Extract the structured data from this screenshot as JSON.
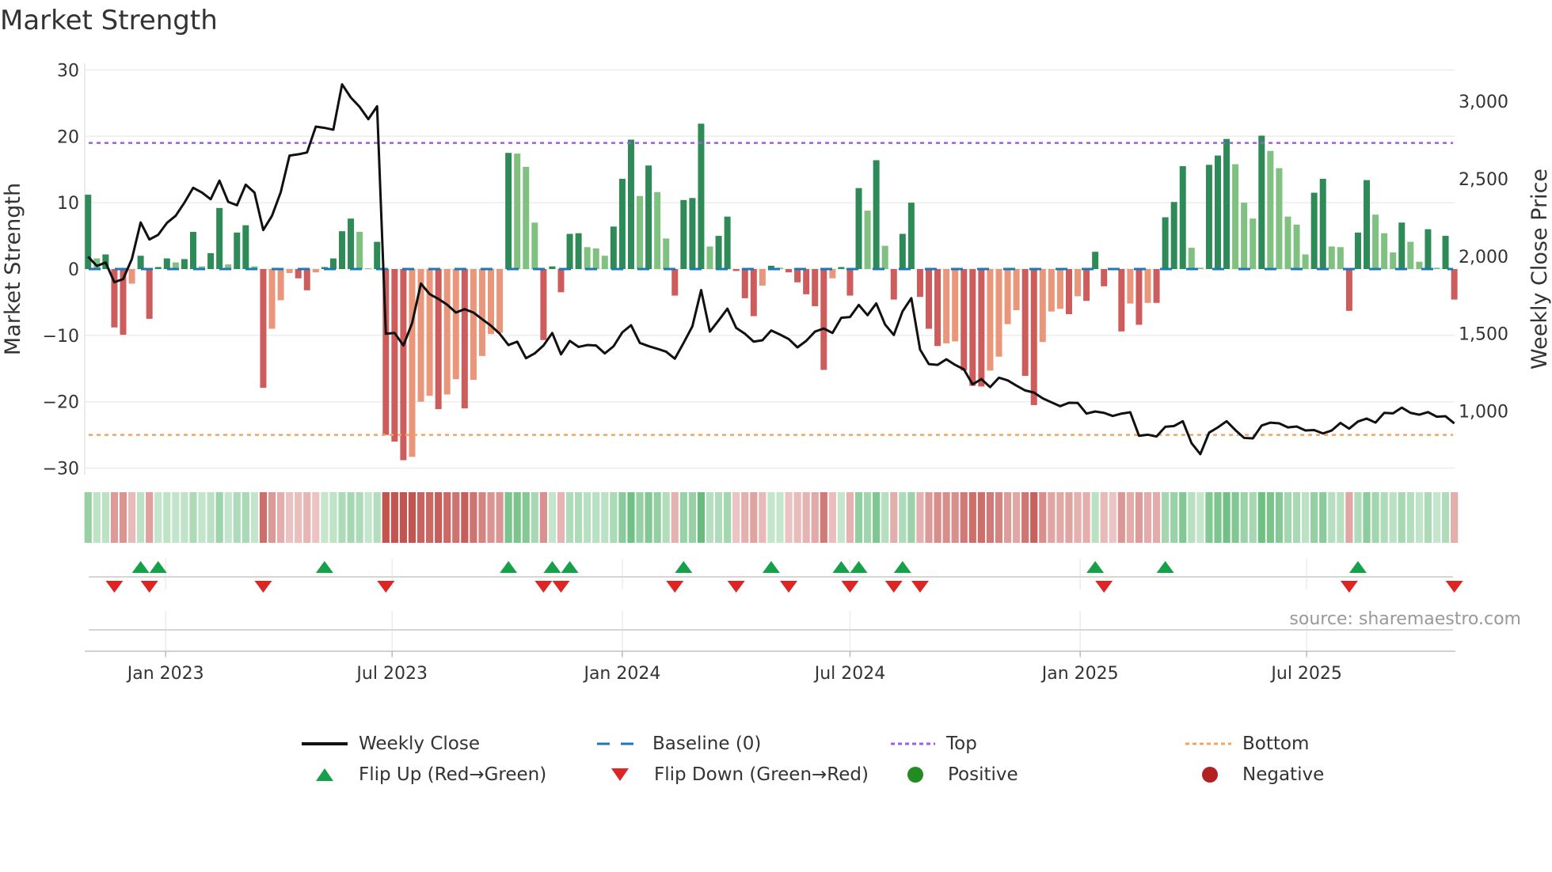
{
  "chart_data": {
    "type": "bar",
    "title": "Market Strength",
    "ylabel": "Market Strength",
    "ylabel_right": "Weekly Close Price",
    "ylim": [
      -31,
      31
    ],
    "ylim_right": [
      588,
      3246
    ],
    "yticks": [
      -30,
      -20,
      -10,
      0,
      10,
      20,
      30
    ],
    "yticks_right": [
      1000,
      1500,
      2000,
      2500,
      3000
    ],
    "yticks_right_labels": [
      "1,000",
      "1,500",
      "2,000",
      "2,500",
      "3,000"
    ],
    "x_start_week": "2022-10-31",
    "x_frequency": "weekly",
    "xticks": [
      {
        "date": "2023-01-01",
        "label": "Jan 2023"
      },
      {
        "date": "2023-07-01",
        "label": "Jul 2023"
      },
      {
        "date": "2024-01-01",
        "label": "Jan 2024"
      },
      {
        "date": "2024-07-01",
        "label": "Jul 2024"
      },
      {
        "date": "2025-01-01",
        "label": "Jan 2025"
      },
      {
        "date": "2025-07-01",
        "label": "Jul 2025"
      }
    ],
    "top_level": 19,
    "bottom_level": -25,
    "baseline": 0,
    "series": [
      {
        "name": "Market Strength",
        "values": [
          11.2,
          1.6,
          2.2,
          -8.8,
          -9.9,
          -2.2,
          2.0,
          -7.5,
          0.3,
          1.6,
          1.0,
          1.5,
          5.6,
          0.4,
          2.4,
          9.2,
          0.7,
          5.5,
          6.6,
          0.4,
          -17.9,
          -9.0,
          -4.7,
          -0.6,
          -1.4,
          -3.2,
          -0.5,
          0.3,
          1.6,
          5.7,
          7.6,
          5.6,
          0.1,
          4.1,
          -25.0,
          -26.0,
          -28.8,
          -28.3,
          -20.0,
          -19.1,
          -21.1,
          -18.9,
          -16.6,
          -21.0,
          -16.7,
          -13.1,
          -9.8,
          -9.6,
          17.5,
          17.4,
          15.4,
          7.0,
          -10.7,
          0.4,
          -3.5,
          5.3,
          5.4,
          3.3,
          3.1,
          2.0,
          6.4,
          13.6,
          19.5,
          11.0,
          15.6,
          11.6,
          4.6,
          -4.0,
          10.4,
          10.7,
          21.9,
          3.4,
          5.0,
          7.9,
          -0.3,
          -4.4,
          -7.1,
          -2.5,
          0.5,
          0.2,
          -0.5,
          -2.0,
          -3.8,
          -5.6,
          -15.2,
          -1.4,
          0.3,
          -4.0,
          12.2,
          8.8,
          16.4,
          3.5,
          -4.6,
          5.3,
          10.0,
          -4.2,
          -9.0,
          -11.6,
          -11.2,
          -10.9,
          -15.3,
          -17.6,
          -17.7,
          -15.3,
          -13.2,
          -8.3,
          -6.2,
          -16.1,
          -20.5,
          -11.0,
          -6.4,
          -6.0,
          -6.8,
          -4.1,
          -4.8,
          2.6,
          -2.6,
          -0.1,
          -9.4,
          -5.2,
          -8.4,
          -5.1,
          -5.1,
          7.8,
          10.1,
          15.5,
          3.2,
          0.2,
          15.7,
          17.1,
          19.6,
          15.8,
          10.0,
          7.6,
          20.1,
          17.8,
          15.2,
          7.9,
          6.7,
          2.2,
          11.5,
          13.6,
          3.4,
          3.3,
          -6.3,
          5.5,
          13.4,
          8.2,
          5.4,
          2.5,
          7.0,
          4.1,
          1.1,
          6.0,
          0.2,
          5.0,
          -4.6
        ]
      },
      {
        "name": "Weekly Close",
        "values": [
          1997,
          1937,
          1959,
          1832,
          1852,
          1982,
          2218,
          2108,
          2138,
          2215,
          2261,
          2346,
          2442,
          2411,
          2368,
          2488,
          2351,
          2329,
          2462,
          2411,
          2169,
          2261,
          2414,
          2650,
          2658,
          2670,
          2837,
          2829,
          2817,
          3110,
          3025,
          2965,
          2885,
          2968,
          1499,
          1504,
          1423,
          1568,
          1823,
          1755,
          1724,
          1687,
          1636,
          1658,
          1636,
          1593,
          1551,
          1499,
          1426,
          1448,
          1341,
          1372,
          1423,
          1504,
          1366,
          1453,
          1414,
          1426,
          1423,
          1372,
          1418,
          1508,
          1554,
          1440,
          1419,
          1402,
          1383,
          1338,
          1440,
          1547,
          1781,
          1513,
          1585,
          1661,
          1537,
          1499,
          1448,
          1457,
          1520,
          1494,
          1465,
          1411,
          1453,
          1513,
          1533,
          1504,
          1602,
          1607,
          1685,
          1619,
          1695,
          1559,
          1491,
          1644,
          1729,
          1397,
          1303,
          1298,
          1334,
          1298,
          1269,
          1172,
          1206,
          1154,
          1215,
          1198,
          1164,
          1133,
          1119,
          1082,
          1056,
          1031,
          1053,
          1052,
          983,
          997,
          988,
          968,
          983,
          992,
          840,
          847,
          835,
          898,
          903,
          934,
          792,
          721,
          860,
          894,
          934,
          877,
          826,
          823,
          906,
          925,
          920,
          894,
          900,
          874,
          877,
          855,
          874,
          923,
          886,
          932,
          951,
          925,
          988,
          985,
          1022,
          988,
          976,
          993,
          963,
          966,
          920
        ]
      }
    ],
    "legend": {
      "placement": "bottom",
      "items": [
        "Weekly Close",
        "Baseline (0)",
        "Top",
        "Bottom",
        "Flip Up (Red→Green)",
        "Flip Down (Green→Red)",
        "Positive",
        "Negative"
      ]
    }
  },
  "colors": {
    "pos_rising": "#2e8b57",
    "pos_falling": "#80c080",
    "neg_falling": "#cd5c5c",
    "neg_rising": "#e9967a",
    "close": "#111111",
    "baseline": "#1f77b4",
    "top": "#9b5fe0",
    "bottom": "#f4a460",
    "flip_up": "#16a04a",
    "flip_down": "#dc2626",
    "positive": "#228b22",
    "negative": "#b22222"
  },
  "source": "source: sharemaestro.com"
}
